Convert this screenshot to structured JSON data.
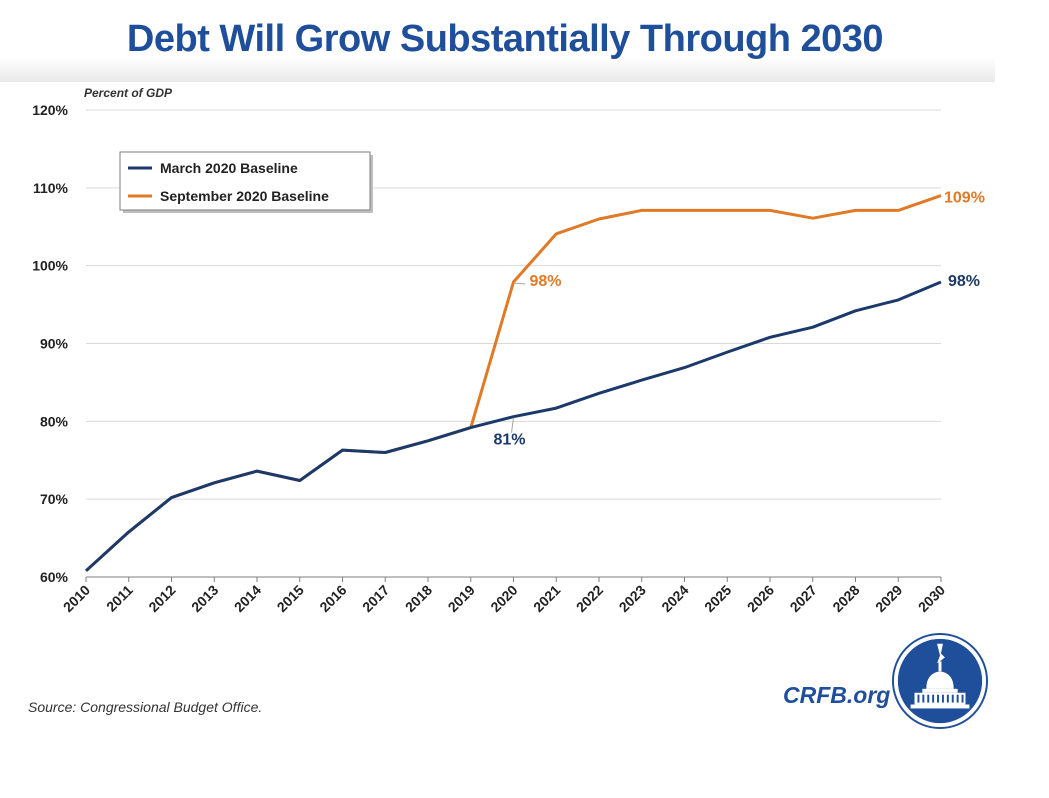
{
  "header": {
    "title": "Debt Will Grow Substantially Through 2030"
  },
  "footer": {
    "source": "Source: Congressional Budget Office.",
    "brand": "CRFB.org"
  },
  "colors": {
    "march": "#1b3a6b",
    "september": "#e07a26",
    "title": "#1f4e9a",
    "grid": "#d9d9d9"
  },
  "chart_data": {
    "type": "line",
    "title": "Debt Will Grow Substantially Through 2030",
    "ylabel": "Percent of GDP",
    "xlabel": "",
    "ylim": [
      60,
      120
    ],
    "yticks": [
      60,
      70,
      80,
      90,
      100,
      110,
      120
    ],
    "ytick_labels": [
      "60%",
      "70%",
      "80%",
      "90%",
      "100%",
      "110%",
      "120%"
    ],
    "grid": true,
    "legend_position": "top-left",
    "x": [
      "2010",
      "2011",
      "2012",
      "2013",
      "2014",
      "2015",
      "2016",
      "2017",
      "2018",
      "2019",
      "2020",
      "2021",
      "2022",
      "2023",
      "2024",
      "2025",
      "2026",
      "2027",
      "2028",
      "2029",
      "2030"
    ],
    "series": [
      {
        "name": "March 2020 Baseline",
        "color": "#1b3a6b",
        "values": [
          60.8,
          65.8,
          70.2,
          72.1,
          73.6,
          72.4,
          76.3,
          76.0,
          77.5,
          79.2,
          80.6,
          81.7,
          83.6,
          85.3,
          86.9,
          88.9,
          90.8,
          92.1,
          94.2,
          95.6,
          97.9
        ]
      },
      {
        "name": "September 2020 Baseline",
        "color": "#e07a26",
        "values": [
          60.8,
          65.8,
          70.2,
          72.1,
          73.6,
          72.4,
          76.3,
          76.0,
          77.5,
          79.2,
          97.9,
          104.1,
          106.0,
          107.1,
          107.1,
          107.1,
          107.1,
          106.1,
          107.1,
          107.1,
          109.0
        ]
      }
    ],
    "annotations": [
      {
        "text": "98%",
        "series": "September 2020 Baseline",
        "x": "2020",
        "y": 97.9
      },
      {
        "text": "81%",
        "series": "March 2020 Baseline",
        "x": "2020",
        "y": 80.6
      },
      {
        "text": "109%",
        "series": "September 2020 Baseline",
        "x": "2030",
        "y": 109.0
      },
      {
        "text": "98%",
        "series": "March 2020 Baseline",
        "x": "2030",
        "y": 97.9
      }
    ]
  }
}
